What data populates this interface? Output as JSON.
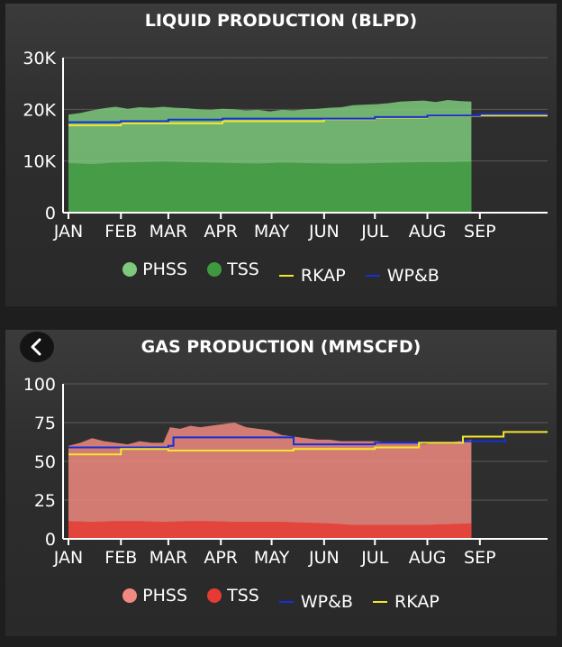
{
  "chart_data": [
    {
      "type": "area",
      "title": "LIQUID PRODUCTION (BLPD)",
      "ylim": [
        0,
        30000
      ],
      "yticks": [
        {
          "value": 0,
          "label": "0"
        },
        {
          "value": 10000,
          "label": "10K"
        },
        {
          "value": 20000,
          "label": "20K"
        },
        {
          "value": 30000,
          "label": "30K"
        }
      ],
      "xticks": [
        "JAN",
        "FEB",
        "MAR",
        "APR",
        "MAY",
        "JUN",
        "JUL",
        "AUG",
        "SEP"
      ],
      "x_domain": [
        "Jan 1",
        "Oct 11"
      ],
      "legend_position": "bottom",
      "series": [
        {
          "name": "PHSS",
          "kind": "area",
          "color": "#7dc97d",
          "data_end": "Aug 28",
          "values": [
            [
              0,
              19000
            ],
            [
              7,
              19300
            ],
            [
              14,
              19800
            ],
            [
              21,
              20200
            ],
            [
              28,
              20500
            ],
            [
              35,
              20100
            ],
            [
              42,
              20400
            ],
            [
              49,
              20300
            ],
            [
              56,
              20500
            ],
            [
              63,
              20300
            ],
            [
              70,
              20200
            ],
            [
              77,
              20000
            ],
            [
              84,
              19900
            ],
            [
              91,
              20100
            ],
            [
              98,
              20000
            ],
            [
              105,
              19800
            ],
            [
              112,
              19900
            ],
            [
              119,
              19600
            ],
            [
              126,
              19900
            ],
            [
              133,
              19800
            ],
            [
              140,
              20000
            ],
            [
              147,
              20100
            ],
            [
              154,
              20300
            ],
            [
              161,
              20400
            ],
            [
              168,
              20800
            ],
            [
              175,
              20900
            ],
            [
              182,
              21000
            ],
            [
              189,
              21200
            ],
            [
              196,
              21500
            ],
            [
              203,
              21600
            ],
            [
              210,
              21700
            ],
            [
              217,
              21400
            ],
            [
              224,
              21800
            ],
            [
              231,
              21600
            ],
            [
              238,
              21500
            ]
          ]
        },
        {
          "name": "TSS",
          "kind": "area",
          "color": "#3f9a3f",
          "data_end": "Aug 28",
          "values": [
            [
              0,
              9600
            ],
            [
              14,
              9400
            ],
            [
              28,
              9700
            ],
            [
              42,
              9800
            ],
            [
              56,
              9900
            ],
            [
              70,
              9800
            ],
            [
              84,
              9700
            ],
            [
              98,
              9600
            ],
            [
              112,
              9500
            ],
            [
              126,
              9700
            ],
            [
              140,
              9600
            ],
            [
              154,
              9500
            ],
            [
              168,
              9500
            ],
            [
              182,
              9600
            ],
            [
              196,
              9700
            ],
            [
              210,
              9800
            ],
            [
              224,
              9800
            ],
            [
              238,
              9900
            ]
          ]
        },
        {
          "name": "RKAP",
          "kind": "step",
          "color": "#f2e630",
          "values": [
            [
              0,
              16900
            ],
            [
              31,
              17300
            ],
            [
              91,
              17700
            ],
            [
              151,
              18100
            ],
            [
              181,
              18400
            ],
            [
              212,
              18700
            ],
            [
              243,
              18800
            ],
            [
              283,
              18800
            ]
          ]
        },
        {
          "name": "WP&B",
          "kind": "step",
          "color": "#1530d8",
          "values": [
            [
              0,
              17500
            ],
            [
              31,
              17700
            ],
            [
              59,
              18000
            ],
            [
              91,
              18200
            ],
            [
              181,
              18500
            ],
            [
              212,
              18800
            ],
            [
              243,
              19100
            ],
            [
              283,
              19100
            ]
          ]
        }
      ]
    },
    {
      "type": "area",
      "title": "GAS PRODUCTION (MMSCFD)",
      "ylim": [
        0,
        100
      ],
      "yticks": [
        {
          "value": 0,
          "label": "0"
        },
        {
          "value": 25,
          "label": "25"
        },
        {
          "value": 50,
          "label": "50"
        },
        {
          "value": 75,
          "label": "75"
        },
        {
          "value": 100,
          "label": "100"
        }
      ],
      "xticks": [
        "JAN",
        "FEB",
        "MAR",
        "APR",
        "MAY",
        "JUN",
        "JUL",
        "AUG",
        "SEP"
      ],
      "x_domain": [
        "Jan 1",
        "Oct 11"
      ],
      "legend_position": "bottom",
      "series": [
        {
          "name": "PHSS",
          "kind": "area",
          "color": "#f08a80",
          "data_end": "Aug 28",
          "values": [
            [
              0,
              60
            ],
            [
              7,
              62
            ],
            [
              14,
              65
            ],
            [
              21,
              63
            ],
            [
              28,
              62
            ],
            [
              35,
              61
            ],
            [
              42,
              63
            ],
            [
              49,
              62
            ],
            [
              56,
              62
            ],
            [
              60,
              72
            ],
            [
              66,
              71
            ],
            [
              72,
              73
            ],
            [
              78,
              72
            ],
            [
              84,
              73
            ],
            [
              91,
              74
            ],
            [
              98,
              75
            ],
            [
              105,
              72
            ],
            [
              112,
              71
            ],
            [
              119,
              70
            ],
            [
              126,
              67
            ],
            [
              133,
              66
            ],
            [
              140,
              65
            ],
            [
              147,
              64
            ],
            [
              154,
              64
            ],
            [
              161,
              63
            ],
            [
              168,
              63
            ],
            [
              175,
              63
            ],
            [
              182,
              63
            ],
            [
              189,
              62
            ],
            [
              196,
              62
            ],
            [
              203,
              62
            ],
            [
              210,
              61
            ],
            [
              217,
              62
            ],
            [
              224,
              62
            ],
            [
              231,
              63
            ],
            [
              238,
              64
            ]
          ]
        },
        {
          "name": "TSS",
          "kind": "area",
          "color": "#e63b33",
          "data_end": "Aug 28",
          "values": [
            [
              0,
              11.5
            ],
            [
              14,
              11
            ],
            [
              28,
              11.5
            ],
            [
              42,
              11.5
            ],
            [
              56,
              11
            ],
            [
              70,
              11.5
            ],
            [
              84,
              11.5
            ],
            [
              98,
              11
            ],
            [
              112,
              11
            ],
            [
              126,
              11
            ],
            [
              140,
              10.5
            ],
            [
              154,
              10
            ],
            [
              168,
              9
            ],
            [
              182,
              9
            ],
            [
              196,
              9
            ],
            [
              210,
              9
            ],
            [
              224,
              9.5
            ],
            [
              238,
              10
            ]
          ]
        },
        {
          "name": "WP&B",
          "kind": "step",
          "color": "#1530d8",
          "values": [
            [
              0,
              59
            ],
            [
              31,
              59
            ],
            [
              59,
              60
            ],
            [
              62,
              65.5
            ],
            [
              133,
              61
            ],
            [
              181,
              62
            ],
            [
              212,
              62
            ],
            [
              232,
              63
            ],
            [
              258,
              64.5
            ],
            [
              258,
              64.5
            ]
          ]
        },
        {
          "name": "RKAP",
          "kind": "step",
          "color": "#f2e630",
          "values": [
            [
              0,
              54.5
            ],
            [
              31,
              58
            ],
            [
              59,
              57
            ],
            [
              133,
              58
            ],
            [
              181,
              59
            ],
            [
              207,
              62
            ],
            [
              233,
              66
            ],
            [
              257,
              69
            ],
            [
              283,
              69
            ]
          ]
        }
      ]
    }
  ],
  "liquid": {
    "title": "LIQUID PRODUCTION (BLPD)",
    "legend": [
      {
        "label": "PHSS",
        "type": "dot",
        "color": "#7dc97d"
      },
      {
        "label": "TSS",
        "type": "dot",
        "color": "#3f9a3f"
      },
      {
        "label": "RKAP",
        "type": "dash",
        "color": "#f2e630"
      },
      {
        "label": "WP&B",
        "type": "dash",
        "color": "#1530d8"
      }
    ]
  },
  "gas": {
    "title": "GAS PRODUCTION (MMSCFD)",
    "back_icon": "chevron-left-icon",
    "legend": [
      {
        "label": "PHSS",
        "type": "dot",
        "color": "#f08a80"
      },
      {
        "label": "TSS",
        "type": "dot",
        "color": "#e63b33"
      },
      {
        "label": "WP&B",
        "type": "dash",
        "color": "#1530d8"
      },
      {
        "label": "RKAP",
        "type": "dash",
        "color": "#f2e630"
      }
    ]
  }
}
